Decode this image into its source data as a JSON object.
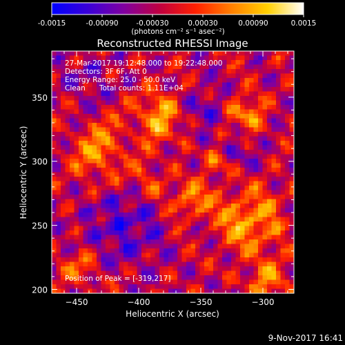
{
  "colorbar": {
    "ticks": [
      "-0.0015",
      "-0.00090",
      "-0.00030",
      "0.00030",
      "0.00090",
      "0.0015"
    ],
    "tick_values": [
      -0.0015,
      -0.0009,
      -0.0003,
      0.0003,
      0.0009,
      0.0015
    ],
    "range": [
      -0.0015,
      0.0015
    ],
    "unit_label": "(photons cm⁻² s⁻¹ asec⁻²)",
    "colors": [
      "#0000ff",
      "#3a00d8",
      "#8000a0",
      "#c00040",
      "#ff2000",
      "#ff8000",
      "#ffd000",
      "#ffffff"
    ]
  },
  "chart_data": {
    "type": "heatmap",
    "title": "Reconstructed RHESSI Image",
    "xlabel": "Heliocentric X (arcsec)",
    "ylabel": "Heliocentric Y (arcsec)",
    "xlim": [
      -470,
      -275
    ],
    "ylim": [
      197,
      386
    ],
    "x_ticks": [
      -450,
      -400,
      -350,
      -300
    ],
    "y_ticks": [
      200,
      250,
      300,
      350
    ],
    "x_tick_labels": [
      "−450",
      "−400",
      "−350",
      "−300"
    ],
    "y_tick_labels": [
      "200",
      "250",
      "300",
      "350"
    ],
    "peak": [
      -319,
      217
    ],
    "info_lines": [
      "27-Mar-2017 19:12:48.000 to 19:22:48.000",
      "Detectors: 3F 6F, Att 0",
      "Energy Range: 25.0 - 50.0 keV",
      "Clean      Total counts: 1.11E+04"
    ],
    "peak_label": "Position of Peak = [-319,217]"
  },
  "footer": {
    "timestamp": "9-Nov-2017 16:41"
  }
}
